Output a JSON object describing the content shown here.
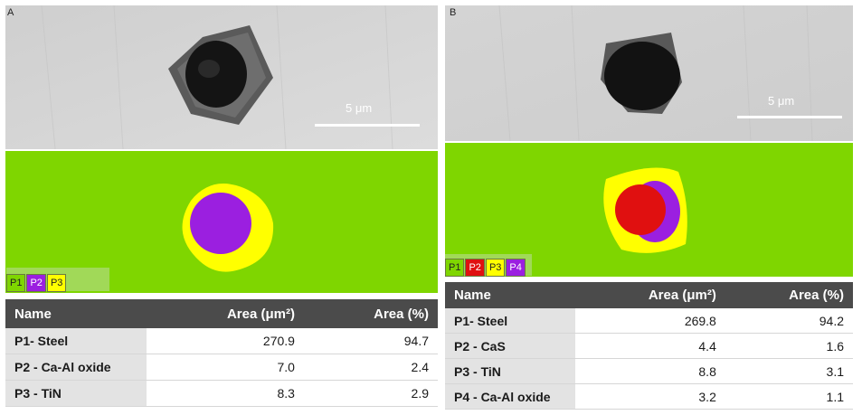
{
  "panels": [
    {
      "letter": "A",
      "scale_label": "5 μm",
      "legend": [
        {
          "label": "P1",
          "color": "#7fd600"
        },
        {
          "label": "P2",
          "color": "#9b1fe0"
        },
        {
          "label": "P3",
          "color": "#ffff00"
        }
      ],
      "table": {
        "headers": [
          "Name",
          "Area (μm²)",
          "Area (%)"
        ],
        "rows": [
          [
            "P1- Steel",
            "270.9",
            "94.7"
          ],
          [
            "P2 - Ca-Al oxide",
            "7.0",
            "2.4"
          ],
          [
            "P3 - TiN",
            "8.3",
            "2.9"
          ]
        ]
      }
    },
    {
      "letter": "B",
      "scale_label": "5 μm",
      "legend": [
        {
          "label": "P1",
          "color": "#7fd600"
        },
        {
          "label": "P2",
          "color": "#e01010"
        },
        {
          "label": "P3",
          "color": "#ffff00"
        },
        {
          "label": "P4",
          "color": "#9b1fe0"
        }
      ],
      "table": {
        "headers": [
          "Name",
          "Area (μm²)",
          "Area (%)"
        ],
        "rows": [
          [
            "P1- Steel",
            "269.8",
            "94.2"
          ],
          [
            "P2 - CaS",
            "4.4",
            "1.6"
          ],
          [
            "P3 - TiN",
            "8.8",
            "3.1"
          ],
          [
            "P4 - Ca-Al oxide",
            "3.2",
            "1.1"
          ]
        ]
      }
    }
  ]
}
